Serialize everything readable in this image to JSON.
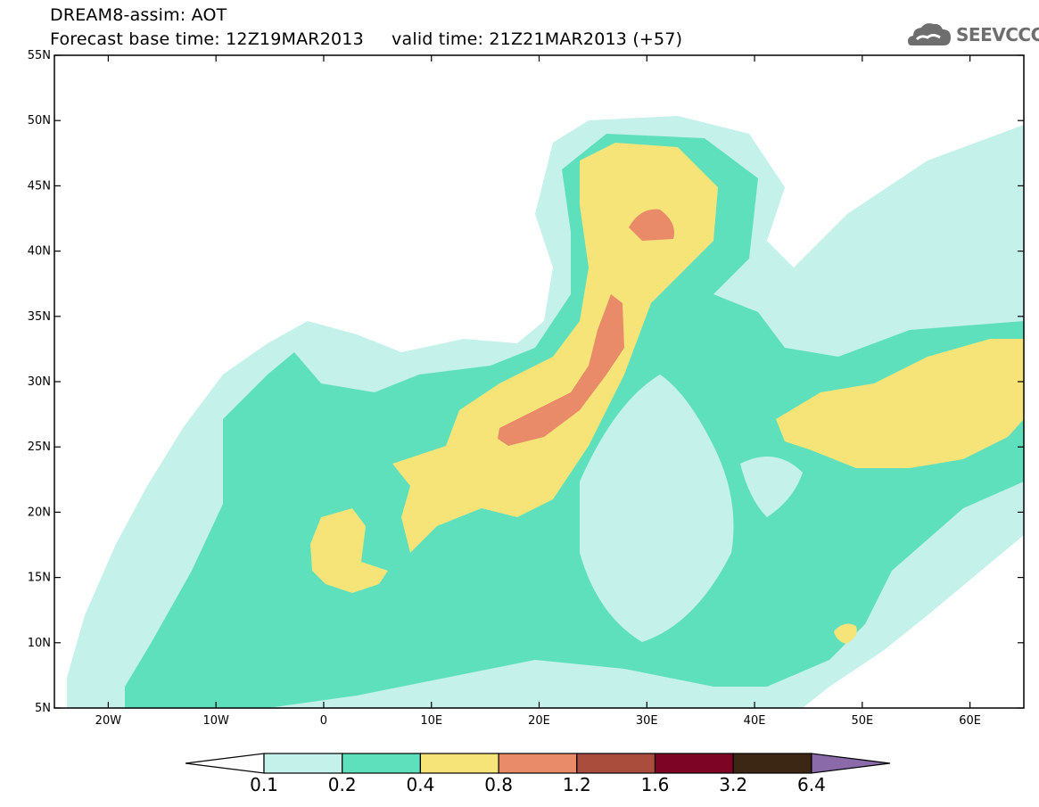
{
  "title": {
    "line1": "DREAM8-assim: AOT",
    "line2": "Forecast base time: 12Z19MAR2013     valid time: 21Z21MAR2013 (+57)"
  },
  "logo": {
    "text": "SEEVCCC",
    "icon": "cloud-icon",
    "color": "#6e6e6e"
  },
  "map": {
    "lon_range": [
      -25,
      65
    ],
    "lat_range": [
      5,
      55
    ],
    "x_ticks": [
      {
        "lon": -20,
        "label": "20W"
      },
      {
        "lon": -10,
        "label": "10W"
      },
      {
        "lon": 0,
        "label": "0"
      },
      {
        "lon": 10,
        "label": "10E"
      },
      {
        "lon": 20,
        "label": "20E"
      },
      {
        "lon": 30,
        "label": "30E"
      },
      {
        "lon": 40,
        "label": "40E"
      },
      {
        "lon": 50,
        "label": "50E"
      },
      {
        "lon": 60,
        "label": "60E"
      }
    ],
    "y_ticks": [
      {
        "lat": 55,
        "label": "55N"
      },
      {
        "lat": 50,
        "label": "50N"
      },
      {
        "lat": 45,
        "label": "45N"
      },
      {
        "lat": 40,
        "label": "40N"
      },
      {
        "lat": 35,
        "label": "35N"
      },
      {
        "lat": 30,
        "label": "30N"
      },
      {
        "lat": 25,
        "label": "25N"
      },
      {
        "lat": 20,
        "label": "20N"
      },
      {
        "lat": 15,
        "label": "15N"
      },
      {
        "lat": 10,
        "label": "10N"
      },
      {
        "lat": 5,
        "label": "5N"
      }
    ]
  },
  "colorbar": {
    "levels": [
      "0.1",
      "0.2",
      "0.4",
      "0.8",
      "1.2",
      "1.6",
      "3.2",
      "6.4"
    ],
    "colors": [
      "#ffffff",
      "#c4f1ea",
      "#5ee0bc",
      "#f6e479",
      "#e98b69",
      "#ab4d3c",
      "#7e0426",
      "#3b2713",
      "#8a6aa8"
    ]
  }
}
